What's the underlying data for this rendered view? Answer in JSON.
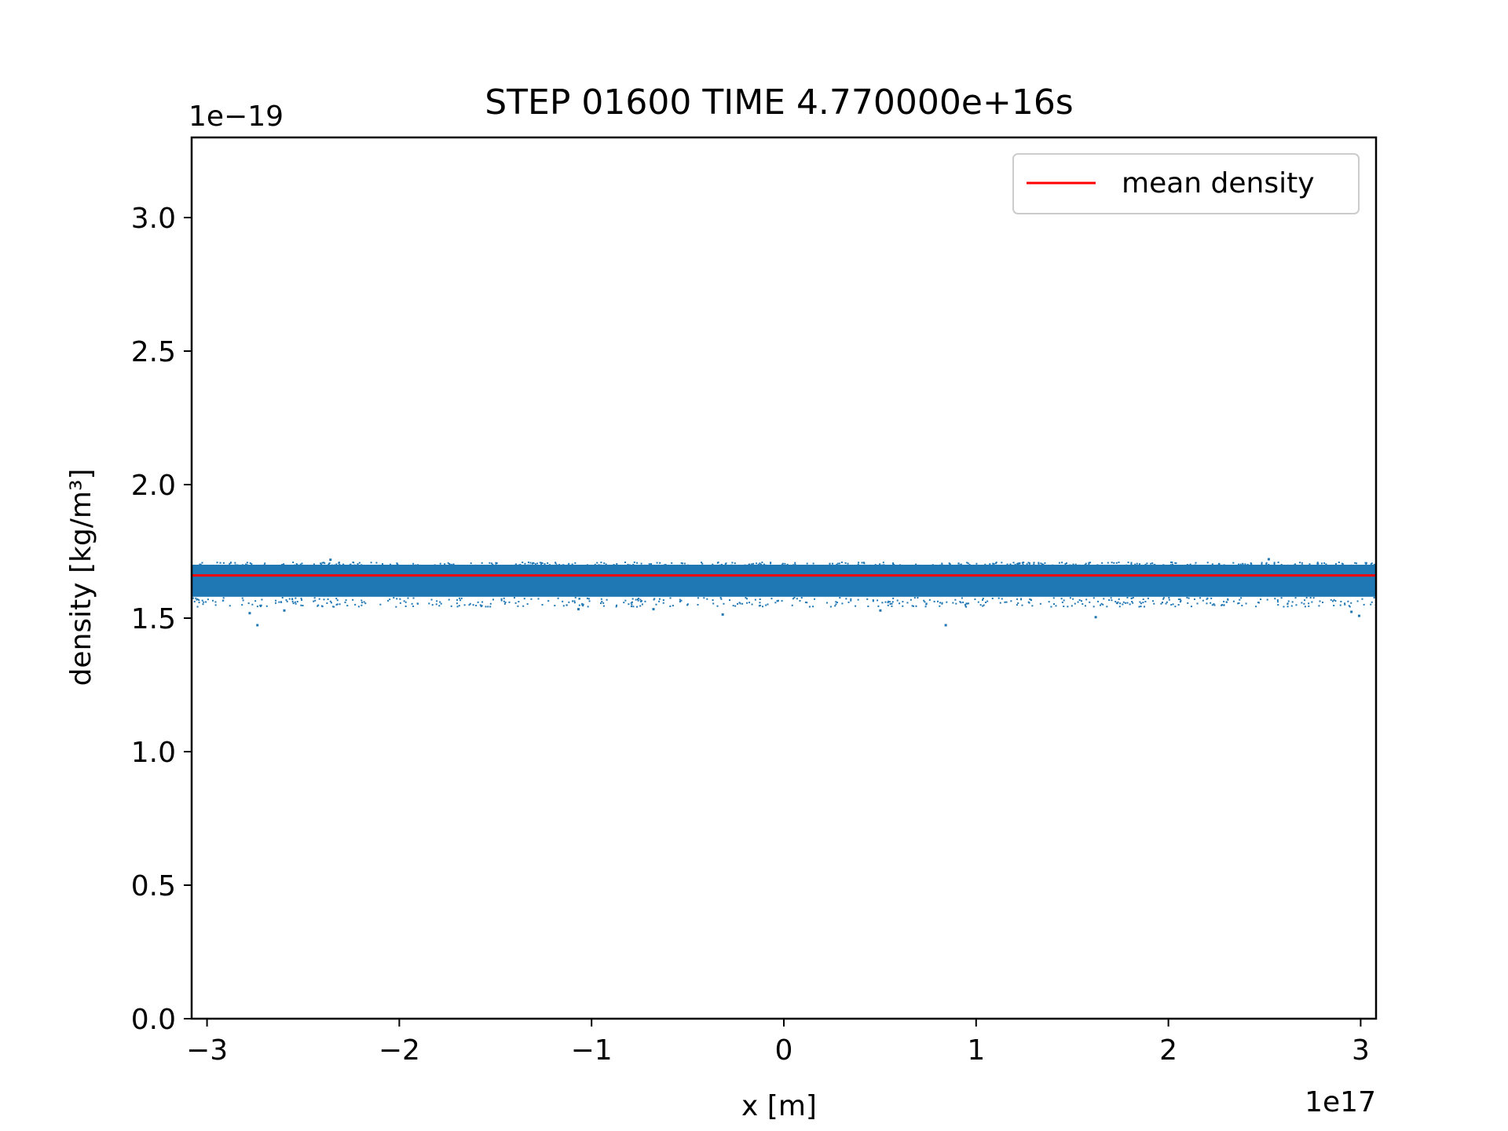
{
  "chart_data": {
    "type": "scatter",
    "title": "STEP 01600 TIME 4.770000e+16s",
    "xlabel": "x [m]",
    "ylabel": "density [kg/m³]",
    "x_offset_label": "1e17",
    "y_offset_label": "1e−19",
    "xlim": [
      -3.08,
      3.08
    ],
    "ylim": [
      0.0,
      3.3
    ],
    "xticks": [
      -3,
      -2,
      -1,
      0,
      1,
      2,
      3
    ],
    "xtick_labels": [
      "−3",
      "−2",
      "−1",
      "0",
      "1",
      "2",
      "3"
    ],
    "yticks": [
      0.0,
      0.5,
      1.0,
      1.5,
      2.0,
      2.5,
      3.0
    ],
    "ytick_labels": [
      "0.0",
      "0.5",
      "1.0",
      "1.5",
      "2.0",
      "2.5",
      "3.0"
    ],
    "grid": false,
    "legend_position": "top-right",
    "series": [
      {
        "name": "",
        "kind": "scatter",
        "color": "#1f77b4",
        "band_x": [
          -3.08,
          3.08
        ],
        "band_y_range": [
          1.58,
          1.7
        ],
        "outliers": [
          {
            "x": -2.78,
            "y": 1.52
          },
          {
            "x": -2.74,
            "y": 1.475
          },
          {
            "x": -2.6,
            "y": 1.53
          },
          {
            "x": -1.07,
            "y": 1.535
          },
          {
            "x": -0.68,
            "y": 1.535
          },
          {
            "x": -0.32,
            "y": 1.515
          },
          {
            "x": 0.5,
            "y": 1.53
          },
          {
            "x": 0.84,
            "y": 1.475
          },
          {
            "x": 1.62,
            "y": 1.505
          },
          {
            "x": 2.95,
            "y": 1.525
          },
          {
            "x": 2.99,
            "y": 1.51
          },
          {
            "x": -2.36,
            "y": 1.72
          },
          {
            "x": 2.52,
            "y": 1.722
          }
        ]
      },
      {
        "name": "mean density",
        "kind": "line",
        "color": "#ff0000",
        "x": [
          -3.08,
          3.08
        ],
        "y": [
          1.66,
          1.66
        ]
      }
    ]
  }
}
